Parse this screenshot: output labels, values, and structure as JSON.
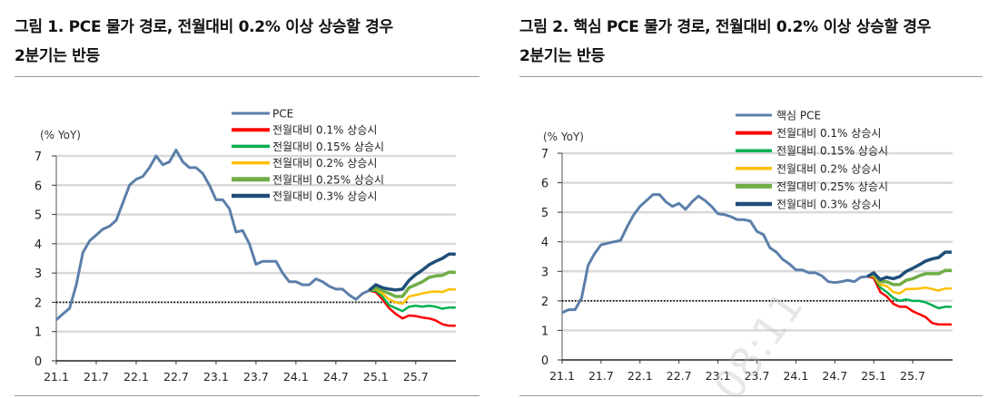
{
  "chart_data": [
    {
      "type": "line",
      "title": "그림 1. PCE 물가 경로, 전월대비 0.2% 이상 상승할 경우 2분기는 반등",
      "ylabel": "(% YoY)",
      "ylim": [
        0,
        7
      ],
      "yticks": [
        "0",
        "1",
        "2",
        "3",
        "4",
        "5",
        "6",
        "7"
      ],
      "xticks": [
        "21.1",
        "21.7",
        "22.1",
        "22.7",
        "23.1",
        "23.7",
        "24.1",
        "24.7",
        "25.1",
        "25.7"
      ],
      "x_start": "2021-01",
      "x_end": "2025-12",
      "grid": true,
      "reference_line": {
        "y": 2,
        "style": "dotted",
        "color": "#000000"
      },
      "legend_position": "top-right",
      "actual": {
        "name": "PCE",
        "color": "#5b7faa",
        "start": "2021-01",
        "values": [
          1.4,
          1.6,
          1.8,
          2.6,
          3.7,
          4.1,
          4.3,
          4.5,
          4.6,
          4.8,
          5.4,
          6.0,
          6.2,
          6.3,
          6.6,
          7.0,
          6.7,
          6.8,
          7.2,
          6.8,
          6.6,
          6.6,
          6.4,
          6.0,
          5.5,
          5.5,
          5.2,
          4.4,
          4.45,
          4.0,
          3.3,
          3.4,
          3.4,
          3.4,
          3.0,
          2.7,
          2.7,
          2.6,
          2.6,
          2.8,
          2.7,
          2.55,
          2.45,
          2.45,
          2.25,
          2.1,
          2.3,
          2.4
        ]
      },
      "series": [
        {
          "name": "전월대비 0.1% 상승시",
          "color": "#ff0000",
          "start": "2024-12",
          "values": [
            2.4,
            2.35,
            2.1,
            1.8,
            1.6,
            1.45,
            1.55,
            1.53,
            1.48,
            1.45,
            1.38,
            1.25,
            1.2,
            1.2
          ]
        },
        {
          "name": "전월대비 0.15% 상승시",
          "color": "#00b050",
          "start": "2024-12",
          "values": [
            2.4,
            2.4,
            2.2,
            1.9,
            1.8,
            1.7,
            1.85,
            1.88,
            1.85,
            1.88,
            1.85,
            1.78,
            1.82,
            1.82
          ]
        },
        {
          "name": "전월대비 0.2% 상승시",
          "color": "#ffc000",
          "start": "2024-12",
          "values": [
            2.4,
            2.45,
            2.3,
            2.1,
            2.0,
            1.95,
            2.2,
            2.25,
            2.3,
            2.35,
            2.37,
            2.35,
            2.44,
            2.44
          ]
        },
        {
          "name": "전월대비 0.25% 상승시",
          "color": "#70ad47",
          "start": "2024-12",
          "values": [
            2.4,
            2.5,
            2.4,
            2.3,
            2.2,
            2.2,
            2.5,
            2.6,
            2.7,
            2.85,
            2.9,
            2.92,
            3.03,
            3.03
          ]
        },
        {
          "name": "전월대비 0.3% 상승시",
          "color": "#1f4e79",
          "start": "2024-12",
          "values": [
            2.4,
            2.6,
            2.5,
            2.45,
            2.42,
            2.45,
            2.75,
            2.95,
            3.1,
            3.28,
            3.4,
            3.5,
            3.65,
            3.65
          ]
        }
      ]
    },
    {
      "type": "line",
      "title": "그림 2. 핵심 PCE 물가 경로, 전월대비 0.2% 이상 상승할 경우 2분기는 반등",
      "ylabel": "(% YoY)",
      "ylim": [
        0,
        7
      ],
      "yticks": [
        "0",
        "1",
        "2",
        "3",
        "4",
        "5",
        "6",
        "7"
      ],
      "xticks": [
        "21.1",
        "21.7",
        "22.1",
        "22.7",
        "23.1",
        "23.7",
        "24.1",
        "24.7",
        "25.1",
        "25.7"
      ],
      "x_start": "2021-01",
      "x_end": "2025-12",
      "grid": true,
      "reference_line": {
        "y": 2,
        "style": "dotted",
        "color": "#000000"
      },
      "legend_position": "top-right",
      "actual": {
        "name": "핵심 PCE",
        "color": "#5b7faa",
        "start": "2021-01",
        "values": [
          1.6,
          1.7,
          1.7,
          2.1,
          3.2,
          3.6,
          3.9,
          3.95,
          4.0,
          4.05,
          4.5,
          4.9,
          5.2,
          5.4,
          5.6,
          5.6,
          5.35,
          5.2,
          5.3,
          5.1,
          5.35,
          5.55,
          5.4,
          5.2,
          4.95,
          4.92,
          4.85,
          4.75,
          4.75,
          4.7,
          4.35,
          4.25,
          3.8,
          3.65,
          3.4,
          3.25,
          3.05,
          3.05,
          2.95,
          2.95,
          2.85,
          2.65,
          2.62,
          2.65,
          2.7,
          2.65,
          2.8,
          2.82
        ]
      },
      "series": [
        {
          "name": "전월대비 0.1% 상승시",
          "color": "#ff0000",
          "start": "2024-12",
          "values": [
            2.82,
            2.78,
            2.3,
            2.15,
            1.9,
            1.8,
            1.8,
            1.65,
            1.55,
            1.45,
            1.25,
            1.2,
            1.2,
            1.2
          ]
        },
        {
          "name": "전월대비 0.15% 상승시",
          "color": "#00b050",
          "start": "2024-12",
          "values": [
            2.82,
            2.85,
            2.45,
            2.3,
            2.1,
            2.0,
            2.05,
            2.0,
            2.0,
            1.95,
            1.85,
            1.75,
            1.8,
            1.8
          ]
        },
        {
          "name": "전월대비 0.2% 상승시",
          "color": "#ffc000",
          "start": "2024-12",
          "values": [
            2.82,
            2.85,
            2.55,
            2.5,
            2.3,
            2.25,
            2.4,
            2.4,
            2.42,
            2.45,
            2.4,
            2.35,
            2.42,
            2.42
          ]
        },
        {
          "name": "전월대비 0.25% 상승시",
          "color": "#70ad47",
          "start": "2024-12",
          "values": [
            2.82,
            2.9,
            2.65,
            2.65,
            2.55,
            2.55,
            2.7,
            2.75,
            2.85,
            2.92,
            2.92,
            2.92,
            3.03,
            3.03
          ]
        },
        {
          "name": "전월대비 0.3% 상승시",
          "color": "#1f4e79",
          "start": "2024-12",
          "values": [
            2.82,
            2.95,
            2.72,
            2.8,
            2.75,
            2.82,
            3.0,
            3.1,
            3.22,
            3.35,
            3.42,
            3.47,
            3.65,
            3.65
          ]
        }
      ]
    }
  ],
  "titles": {
    "chart1_line1": "그림 1. PCE 물가 경로, 전월대비 0.2% 이상 상승할 경우",
    "chart1_line2": "2분기는 반등",
    "chart2_line1": "그림 2. 핵심 PCE 물가 경로, 전월대비 0.2% 이상 상승할 경우",
    "chart2_line2": "2분기는 반등"
  },
  "watermark": "08:11"
}
